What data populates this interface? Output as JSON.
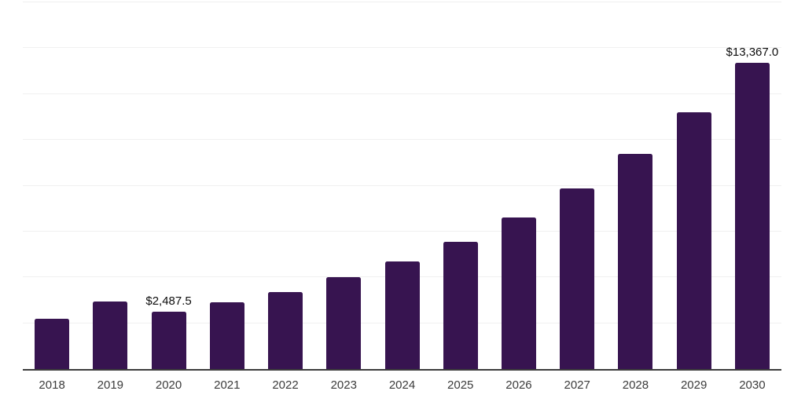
{
  "chart_data": {
    "type": "bar",
    "title": "",
    "xlabel": "",
    "ylabel": "",
    "categories": [
      "2018",
      "2019",
      "2020",
      "2021",
      "2022",
      "2023",
      "2024",
      "2025",
      "2026",
      "2027",
      "2028",
      "2029",
      "2030"
    ],
    "values": [
      2190,
      2945,
      2487.5,
      2900,
      3345,
      3995,
      4690,
      5535,
      6620,
      7875,
      9405,
      11205,
      13367
    ],
    "data_labels": [
      {
        "index": 2,
        "category": "2020",
        "text": "$2,487.5"
      },
      {
        "index": 12,
        "category": "2030",
        "text": "$13,367.0"
      }
    ],
    "ylim": [
      0,
      16000
    ],
    "gridline_interval": 2000,
    "grid": true,
    "legend": false,
    "y_axis_ticks_visible": false,
    "colors": {
      "bar": "#371450",
      "gridline": "#f0f0f0",
      "axis_line": "#3c3c3c",
      "tick_label": "#3b3b3b",
      "data_label": "#0d0d0d",
      "background": "#ffffff"
    }
  }
}
